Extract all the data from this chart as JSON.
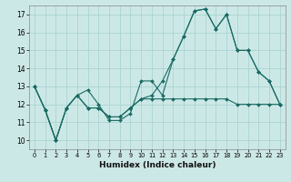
{
  "xlabel": "Humidex (Indice chaleur)",
  "bg_color": "#cce8e6",
  "grid_color": "#aad4d1",
  "line_color": "#1a6b64",
  "xlim": [
    -0.5,
    23.5
  ],
  "ylim": [
    9.5,
    17.5
  ],
  "xticks": [
    0,
    1,
    2,
    3,
    4,
    5,
    6,
    7,
    8,
    9,
    10,
    11,
    12,
    13,
    14,
    15,
    16,
    17,
    18,
    19,
    20,
    21,
    22,
    23
  ],
  "yticks": [
    10,
    11,
    12,
    13,
    14,
    15,
    16,
    17
  ],
  "line1": [
    13.0,
    11.7,
    10.0,
    11.8,
    12.5,
    12.8,
    12.0,
    11.1,
    11.1,
    11.5,
    13.3,
    13.3,
    12.5,
    14.5,
    15.8,
    17.2,
    17.3,
    16.2,
    17.0,
    15.0,
    15.0,
    13.8,
    13.3,
    12.0
  ],
  "line2": [
    13.0,
    11.7,
    10.0,
    11.8,
    12.5,
    11.8,
    11.8,
    11.3,
    11.3,
    11.8,
    12.3,
    12.3,
    12.3,
    12.3,
    12.3,
    12.3,
    12.3,
    12.3,
    12.3,
    12.0,
    12.0,
    12.0,
    12.0,
    12.0
  ],
  "line3": [
    13.0,
    11.7,
    10.0,
    11.8,
    12.5,
    11.8,
    11.8,
    11.3,
    11.3,
    11.8,
    12.3,
    12.5,
    13.3,
    14.5,
    15.8,
    17.2,
    17.3,
    16.2,
    17.0,
    15.0,
    15.0,
    13.8,
    13.3,
    12.0
  ]
}
